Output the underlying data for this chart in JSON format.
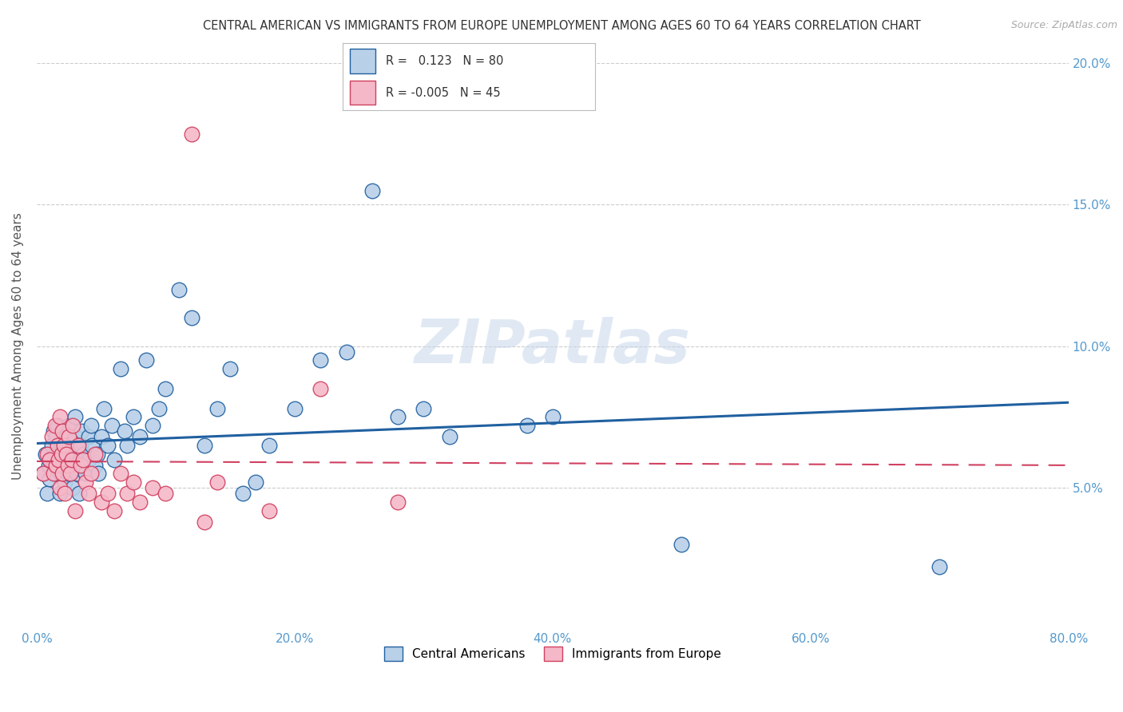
{
  "title": "CENTRAL AMERICAN VS IMMIGRANTS FROM EUROPE UNEMPLOYMENT AMONG AGES 60 TO 64 YEARS CORRELATION CHART",
  "source": "Source: ZipAtlas.com",
  "ylabel": "Unemployment Among Ages 60 to 64 years",
  "xlim": [
    0.0,
    0.8
  ],
  "ylim": [
    0.0,
    0.2
  ],
  "yticks": [
    0.05,
    0.1,
    0.15,
    0.2
  ],
  "xticks": [
    0.0,
    0.2,
    0.4,
    0.6,
    0.8
  ],
  "blue_R": 0.123,
  "blue_N": 80,
  "pink_R": -0.005,
  "pink_N": 45,
  "blue_color": "#b8d0e8",
  "pink_color": "#f5b8c8",
  "blue_line_color": "#2060a0",
  "pink_line_color": "#d04060",
  "legend_label_blue": "Central Americans",
  "legend_label_pink": "Immigrants from Europe",
  "watermark": "ZIPatlas",
  "blue_scatter": [
    [
      0.005,
      0.055
    ],
    [
      0.007,
      0.062
    ],
    [
      0.008,
      0.048
    ],
    [
      0.009,
      0.058
    ],
    [
      0.01,
      0.06
    ],
    [
      0.01,
      0.053
    ],
    [
      0.012,
      0.065
    ],
    [
      0.013,
      0.07
    ],
    [
      0.013,
      0.058
    ],
    [
      0.014,
      0.055
    ],
    [
      0.015,
      0.068
    ],
    [
      0.015,
      0.062
    ],
    [
      0.016,
      0.072
    ],
    [
      0.017,
      0.06
    ],
    [
      0.018,
      0.055
    ],
    [
      0.018,
      0.048
    ],
    [
      0.019,
      0.065
    ],
    [
      0.02,
      0.063
    ],
    [
      0.02,
      0.058
    ],
    [
      0.021,
      0.07
    ],
    [
      0.022,
      0.06
    ],
    [
      0.022,
      0.052
    ],
    [
      0.023,
      0.068
    ],
    [
      0.024,
      0.055
    ],
    [
      0.025,
      0.072
    ],
    [
      0.025,
      0.06
    ],
    [
      0.026,
      0.065
    ],
    [
      0.027,
      0.058
    ],
    [
      0.028,
      0.062
    ],
    [
      0.028,
      0.05
    ],
    [
      0.03,
      0.075
    ],
    [
      0.03,
      0.068
    ],
    [
      0.031,
      0.055
    ],
    [
      0.032,
      0.062
    ],
    [
      0.033,
      0.048
    ],
    [
      0.034,
      0.065
    ],
    [
      0.035,
      0.07
    ],
    [
      0.035,
      0.058
    ],
    [
      0.036,
      0.062
    ],
    [
      0.038,
      0.055
    ],
    [
      0.04,
      0.068
    ],
    [
      0.04,
      0.06
    ],
    [
      0.042,
      0.072
    ],
    [
      0.043,
      0.065
    ],
    [
      0.045,
      0.058
    ],
    [
      0.047,
      0.062
    ],
    [
      0.048,
      0.055
    ],
    [
      0.05,
      0.068
    ],
    [
      0.052,
      0.078
    ],
    [
      0.055,
      0.065
    ],
    [
      0.058,
      0.072
    ],
    [
      0.06,
      0.06
    ],
    [
      0.065,
      0.092
    ],
    [
      0.068,
      0.07
    ],
    [
      0.07,
      0.065
    ],
    [
      0.075,
      0.075
    ],
    [
      0.08,
      0.068
    ],
    [
      0.085,
      0.095
    ],
    [
      0.09,
      0.072
    ],
    [
      0.095,
      0.078
    ],
    [
      0.1,
      0.085
    ],
    [
      0.11,
      0.12
    ],
    [
      0.12,
      0.11
    ],
    [
      0.13,
      0.065
    ],
    [
      0.14,
      0.078
    ],
    [
      0.15,
      0.092
    ],
    [
      0.16,
      0.048
    ],
    [
      0.17,
      0.052
    ],
    [
      0.18,
      0.065
    ],
    [
      0.2,
      0.078
    ],
    [
      0.22,
      0.095
    ],
    [
      0.24,
      0.098
    ],
    [
      0.26,
      0.155
    ],
    [
      0.28,
      0.075
    ],
    [
      0.3,
      0.078
    ],
    [
      0.32,
      0.068
    ],
    [
      0.38,
      0.072
    ],
    [
      0.4,
      0.075
    ],
    [
      0.5,
      0.03
    ],
    [
      0.7,
      0.022
    ]
  ],
  "pink_scatter": [
    [
      0.005,
      0.055
    ],
    [
      0.008,
      0.062
    ],
    [
      0.01,
      0.06
    ],
    [
      0.012,
      0.068
    ],
    [
      0.013,
      0.055
    ],
    [
      0.014,
      0.072
    ],
    [
      0.015,
      0.058
    ],
    [
      0.016,
      0.065
    ],
    [
      0.017,
      0.06
    ],
    [
      0.018,
      0.075
    ],
    [
      0.018,
      0.05
    ],
    [
      0.019,
      0.062
    ],
    [
      0.02,
      0.07
    ],
    [
      0.02,
      0.055
    ],
    [
      0.021,
      0.065
    ],
    [
      0.022,
      0.048
    ],
    [
      0.023,
      0.062
    ],
    [
      0.024,
      0.058
    ],
    [
      0.025,
      0.068
    ],
    [
      0.026,
      0.055
    ],
    [
      0.027,
      0.06
    ],
    [
      0.028,
      0.072
    ],
    [
      0.03,
      0.042
    ],
    [
      0.032,
      0.065
    ],
    [
      0.034,
      0.058
    ],
    [
      0.036,
      0.06
    ],
    [
      0.038,
      0.052
    ],
    [
      0.04,
      0.048
    ],
    [
      0.042,
      0.055
    ],
    [
      0.045,
      0.062
    ],
    [
      0.05,
      0.045
    ],
    [
      0.055,
      0.048
    ],
    [
      0.06,
      0.042
    ],
    [
      0.065,
      0.055
    ],
    [
      0.07,
      0.048
    ],
    [
      0.075,
      0.052
    ],
    [
      0.08,
      0.045
    ],
    [
      0.09,
      0.05
    ],
    [
      0.1,
      0.048
    ],
    [
      0.12,
      0.175
    ],
    [
      0.13,
      0.038
    ],
    [
      0.14,
      0.052
    ],
    [
      0.18,
      0.042
    ],
    [
      0.22,
      0.085
    ],
    [
      0.28,
      0.045
    ]
  ]
}
